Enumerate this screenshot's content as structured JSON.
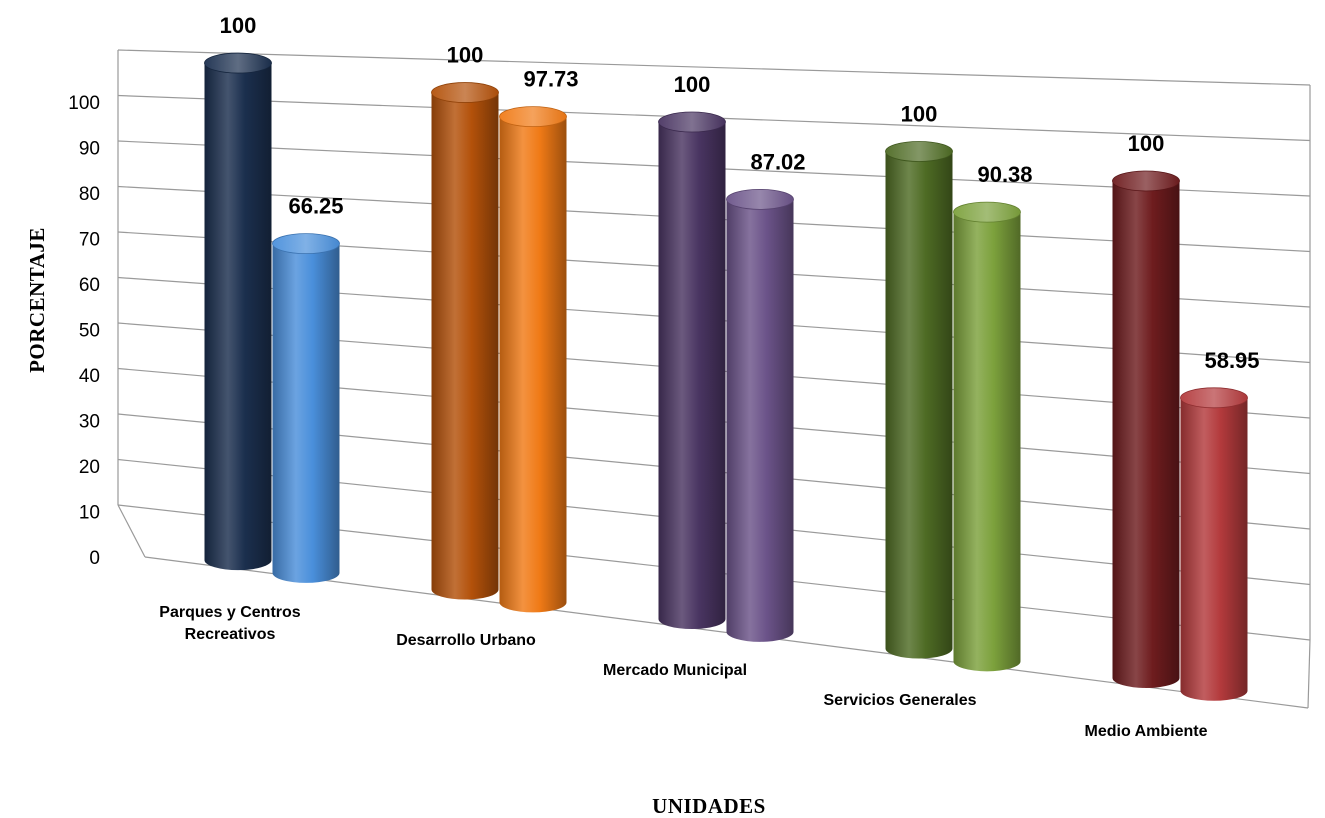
{
  "chart_data": {
    "type": "bar",
    "style": "3d-cylinder",
    "title": "",
    "xlabel": "UNIDADES",
    "ylabel": "PORCENTAJE",
    "ylim": [
      0,
      100
    ],
    "yticks": [
      "0",
      "10",
      "20",
      "30",
      "40",
      "50",
      "60",
      "70",
      "80",
      "90",
      "100"
    ],
    "grid": true,
    "legend": "none",
    "categories": [
      [
        "Parques y Centros",
        "Recreativos"
      ],
      [
        "Desarrollo Urbano"
      ],
      [
        "Mercado Municipal"
      ],
      [
        "Servicios Generales"
      ],
      [
        "Medio Ambiente"
      ]
    ],
    "series": [
      {
        "values": [
          100,
          100,
          100,
          100,
          100
        ],
        "value_labels": [
          "100",
          "100",
          "100",
          "100",
          "100"
        ]
      },
      {
        "values": [
          66.25,
          97.73,
          87.02,
          90.38,
          58.95
        ],
        "value_labels": [
          "66.25",
          "97.73",
          "87.02",
          "90.38",
          "58.95"
        ]
      }
    ],
    "colors": [
      [
        "#1b2f4e",
        "#4a8fdb"
      ],
      [
        "#b3510a",
        "#f07a16"
      ],
      [
        "#4a3562",
        "#6b5389"
      ],
      [
        "#4e6b24",
        "#7ca13c"
      ],
      [
        "#6e1c1e",
        "#b33a3c"
      ]
    ]
  }
}
